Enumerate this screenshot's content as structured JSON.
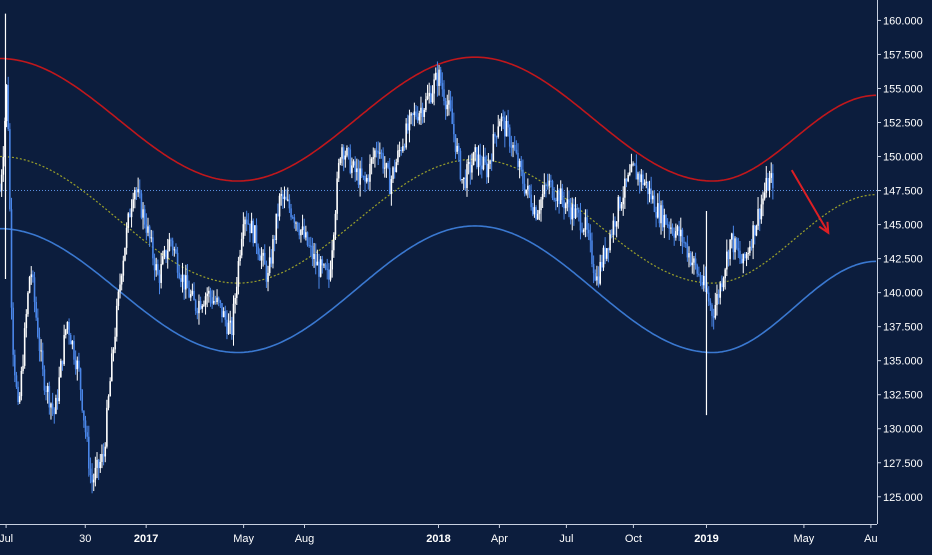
{
  "chart_data": {
    "type": "candlestick",
    "title": "",
    "xlabel": "",
    "ylabel": "",
    "y_ticks": [
      "125.000",
      "127.500",
      "130.000",
      "132.500",
      "135.000",
      "137.500",
      "140.000",
      "142.500",
      "145.000",
      "147.500",
      "150.000",
      "152.500",
      "155.000",
      "157.500",
      "160.000"
    ],
    "ylim": [
      123.0,
      161.5
    ],
    "x_tick_labels": [
      {
        "label": "Jul",
        "t": 0.5
      },
      {
        "label": "30",
        "t": 7.0
      },
      {
        "label": "2017",
        "t": 12.0
      },
      {
        "label": "May",
        "t": 20.0
      },
      {
        "label": "Aug",
        "t": 25.0
      },
      {
        "label": "2018",
        "t": 36.0
      },
      {
        "label": "Apr",
        "t": 41.0
      },
      {
        "label": "Jul",
        "t": 46.5
      },
      {
        "label": "Oct",
        "t": 52.0
      },
      {
        "label": "2019",
        "t": 58.0
      },
      {
        "label": "May",
        "t": 66.0
      },
      {
        "label": "Au",
        "t": 71.5
      }
    ],
    "xlim": [
      0,
      72
    ],
    "price_anchors": [
      [
        0,
        147.5
      ],
      [
        0.3,
        151
      ],
      [
        0.6,
        156
      ],
      [
        1,
        137
      ],
      [
        1.5,
        131
      ],
      [
        2.5,
        142
      ],
      [
        3.5,
        134
      ],
      [
        4.5,
        131
      ],
      [
        5.5,
        138
      ],
      [
        6.5,
        134
      ],
      [
        7.5,
        126
      ],
      [
        8.5,
        128
      ],
      [
        9.2,
        135
      ],
      [
        10,
        142
      ],
      [
        11,
        148
      ],
      [
        12,
        145
      ],
      [
        13,
        141
      ],
      [
        14,
        144
      ],
      [
        15,
        141
      ],
      [
        16,
        139
      ],
      [
        17,
        140
      ],
      [
        18,
        139
      ],
      [
        19,
        137
      ],
      [
        20,
        146
      ],
      [
        21,
        144
      ],
      [
        22,
        141
      ],
      [
        23,
        147
      ],
      [
        24,
        146
      ],
      [
        25,
        144
      ],
      [
        26,
        142
      ],
      [
        27,
        141
      ],
      [
        28,
        151
      ],
      [
        29,
        149
      ],
      [
        30,
        148
      ],
      [
        31,
        151
      ],
      [
        32,
        148
      ],
      [
        33,
        151
      ],
      [
        34,
        153
      ],
      [
        35,
        154
      ],
      [
        36,
        156
      ],
      [
        37,
        153
      ],
      [
        38,
        148
      ],
      [
        39,
        150
      ],
      [
        40,
        149
      ],
      [
        41,
        153
      ],
      [
        42,
        151
      ],
      [
        43,
        148
      ],
      [
        44,
        146
      ],
      [
        45,
        148
      ],
      [
        46,
        147
      ],
      [
        47,
        146
      ],
      [
        48,
        145
      ],
      [
        49,
        141
      ],
      [
        50,
        144
      ],
      [
        51,
        147
      ],
      [
        52,
        149
      ],
      [
        53,
        148
      ],
      [
        54,
        146
      ],
      [
        55,
        145
      ],
      [
        56,
        144
      ],
      [
        57,
        142
      ],
      [
        58,
        140
      ],
      [
        58.5,
        138.5
      ],
      [
        59,
        140
      ],
      [
        60,
        144
      ],
      [
        61,
        142
      ],
      [
        62,
        145
      ],
      [
        63,
        148
      ],
      [
        63.5,
        148.3
      ]
    ],
    "price_spikes": [
      [
        0.45,
        160.5,
        141
      ],
      [
        58,
        131,
        146
      ]
    ],
    "bands": {
      "upper": {
        "color": "#c0171c",
        "anchors": [
          [
            0,
            157.2
          ],
          [
            19.5,
            148.2
          ],
          [
            39,
            157.3
          ],
          [
            58.5,
            148.2
          ],
          [
            72,
            154.5
          ]
        ]
      },
      "middle": {
        "color": "#9aa02a",
        "anchors": [
          [
            0,
            150
          ],
          [
            19.5,
            140.7
          ],
          [
            39,
            149.8
          ],
          [
            58.5,
            140.7
          ],
          [
            72,
            147.2
          ]
        ]
      },
      "lower": {
        "color": "#3a78d0",
        "anchors": [
          [
            0,
            144.7
          ],
          [
            19.5,
            135.6
          ],
          [
            39,
            144.9
          ],
          [
            58.5,
            135.6
          ],
          [
            72,
            142.3
          ]
        ]
      }
    },
    "current_price_line": 147.5,
    "forecast_arrow": {
      "color": "#dd1f24",
      "from": [
        65,
        149
      ],
      "to": [
        68,
        144.4
      ]
    }
  }
}
